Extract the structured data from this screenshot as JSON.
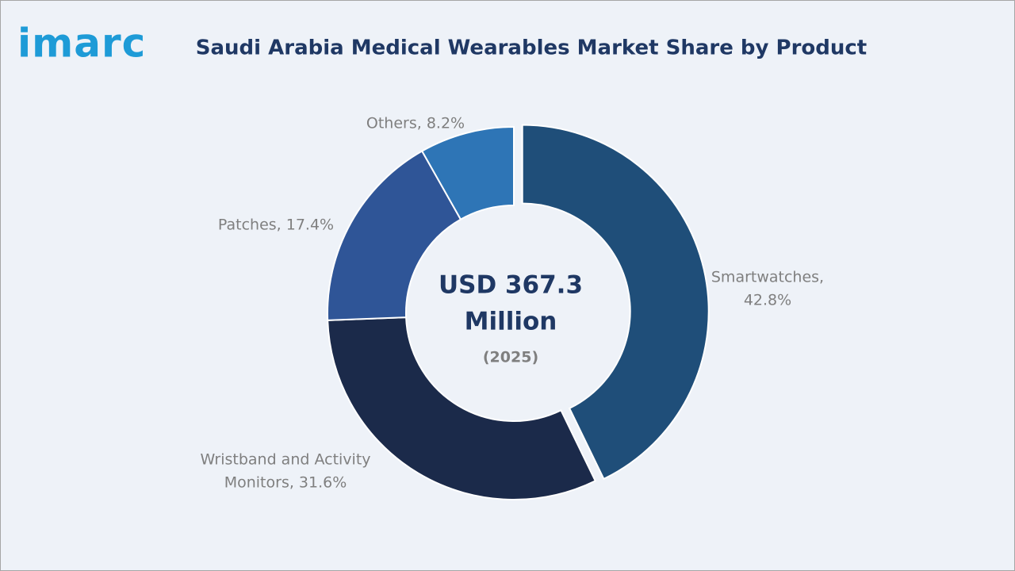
{
  "brand": "imarc",
  "chart_data": {
    "type": "donut",
    "title": "Saudi Arabia Medical Wearables Market Share by Product",
    "labels": [
      [
        "Smartwatches,",
        "42.8%"
      ],
      [
        "Wristband and Activity",
        "Monitors, 31.6%"
      ],
      [
        "Patches, 17.4%"
      ],
      [
        "Others, 8.2%"
      ]
    ],
    "values": [
      42.8,
      31.6,
      17.4,
      8.2
    ],
    "colors": [
      "#1f4e79",
      "#1b2a4a",
      "#2f5597",
      "#2e75b6"
    ],
    "center_text": [
      "USD 367.3",
      "Million"
    ],
    "center_subtext": "(2025)"
  }
}
